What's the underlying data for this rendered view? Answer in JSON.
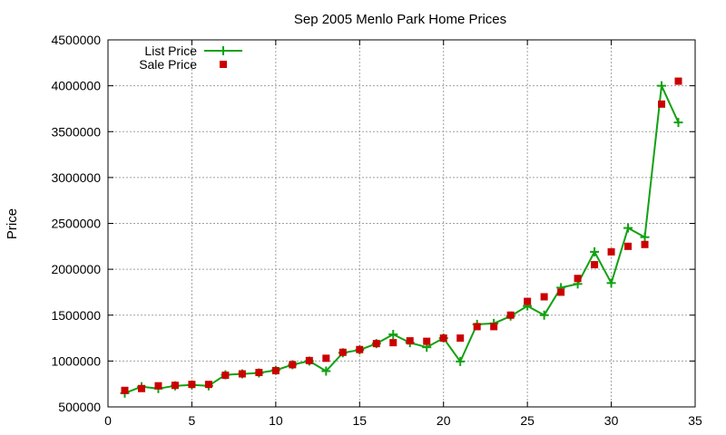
{
  "chart_data": {
    "type": "line",
    "title": "Sep 2005 Menlo Park Home Prices",
    "xlabel": "",
    "ylabel": "Price",
    "xlim": [
      0,
      35
    ],
    "ylim": [
      500000,
      4500000
    ],
    "xticks": [
      0,
      5,
      10,
      15,
      20,
      25,
      30,
      35
    ],
    "yticks": [
      500000,
      1000000,
      1500000,
      2000000,
      2500000,
      3000000,
      3500000,
      4000000,
      4500000
    ],
    "grid": true,
    "legend_position": "top-left",
    "series": [
      {
        "name": "List Price",
        "style": "line+plus",
        "color": "#11a111",
        "x": [
          1,
          2,
          3,
          4,
          5,
          6,
          7,
          8,
          9,
          10,
          11,
          12,
          13,
          14,
          15,
          16,
          17,
          18,
          19,
          20,
          21,
          22,
          23,
          24,
          25,
          26,
          27,
          28,
          29,
          30,
          31,
          32,
          33,
          34
        ],
        "values": [
          650000,
          720000,
          700000,
          730000,
          740000,
          730000,
          850000,
          860000,
          870000,
          900000,
          960000,
          1000000,
          890000,
          1090000,
          1120000,
          1190000,
          1290000,
          1200000,
          1150000,
          1250000,
          995000,
          1400000,
          1410000,
          1490000,
          1600000,
          1500000,
          1800000,
          1840000,
          2190000,
          1850000,
          2450000,
          2350000,
          4000000,
          3600000
        ]
      },
      {
        "name": "Sale Price",
        "style": "square",
        "color": "#cc0000",
        "x": [
          1,
          2,
          3,
          4,
          5,
          6,
          7,
          8,
          9,
          10,
          11,
          12,
          13,
          14,
          15,
          16,
          17,
          18,
          19,
          20,
          21,
          22,
          23,
          24,
          25,
          26,
          27,
          28,
          29,
          30,
          31,
          32,
          33,
          34
        ],
        "values": [
          680000,
          700000,
          730000,
          735000,
          745000,
          745000,
          845000,
          860000,
          875000,
          895000,
          960000,
          1005000,
          1030000,
          1095000,
          1125000,
          1190000,
          1200000,
          1220000,
          1215000,
          1250000,
          1250000,
          1375000,
          1375000,
          1500000,
          1650000,
          1700000,
          1750000,
          1900000,
          2050000,
          2190000,
          2250000,
          2270000,
          3800000,
          4050000
        ]
      }
    ]
  }
}
